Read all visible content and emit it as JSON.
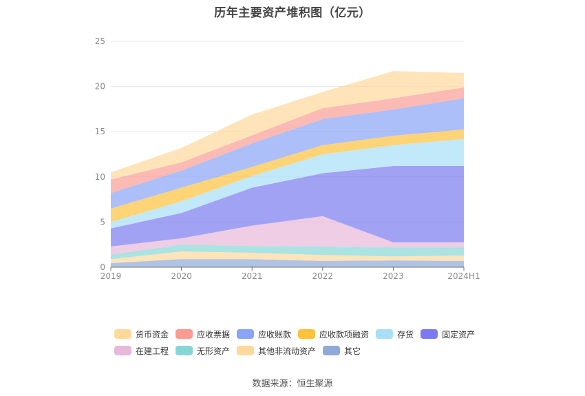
{
  "title": "历年主要资产堆积图（亿元）",
  "source": "数据来源：恒生聚源",
  "chart_data": {
    "type": "area",
    "stacked": true,
    "title": "历年主要资产堆积图（亿元）",
    "xlabel": "",
    "ylabel": "",
    "categories": [
      "2019",
      "2020",
      "2021",
      "2022",
      "2023",
      "2024H1"
    ],
    "ylim": [
      0,
      25
    ],
    "yticks": [
      0,
      5,
      10,
      15,
      20,
      25
    ],
    "grid": true,
    "legend_position": "bottom",
    "series": [
      {
        "name": "其它",
        "color": "#8faad9",
        "values": [
          0.45,
          0.9,
          0.9,
          0.7,
          0.75,
          0.7
        ]
      },
      {
        "name": "其他非流动资产",
        "color": "#ffd89c",
        "values": [
          0.45,
          0.85,
          0.7,
          0.65,
          0.45,
          0.6
        ]
      },
      {
        "name": "无形资产",
        "color": "#87d6d6",
        "values": [
          0.5,
          0.75,
          0.75,
          0.95,
          1.0,
          0.9
        ]
      },
      {
        "name": "在建工程",
        "color": "#e8b8d9",
        "values": [
          0.9,
          0.7,
          2.25,
          3.35,
          0.55,
          0.55
        ]
      },
      {
        "name": "固定资产",
        "color": "#7b7bef",
        "values": [
          2.0,
          2.8,
          4.2,
          4.75,
          8.45,
          8.45
        ]
      },
      {
        "name": "存货",
        "color": "#a8dff7",
        "values": [
          0.7,
          1.3,
          1.3,
          2.1,
          2.3,
          3.0
        ]
      },
      {
        "name": "应收款项融资",
        "color": "#ffc23d",
        "values": [
          1.5,
          1.5,
          1.0,
          1.0,
          1.05,
          1.05
        ]
      },
      {
        "name": "应收账款",
        "color": "#8aa4f7",
        "values": [
          1.7,
          1.9,
          2.6,
          2.9,
          2.9,
          3.45
        ]
      },
      {
        "name": "应收票据",
        "color": "#fa9c94",
        "values": [
          1.5,
          0.9,
          0.9,
          1.2,
          1.25,
          1.2
        ]
      },
      {
        "name": "货币资金",
        "color": "#ffd89c",
        "values": [
          0.8,
          1.6,
          2.3,
          1.8,
          3.0,
          1.6
        ]
      }
    ]
  },
  "legend": {
    "rows": [
      [
        {
          "name": "货币资金",
          "color": "#ffd89c"
        },
        {
          "name": "应收票据",
          "color": "#fa9c94"
        },
        {
          "name": "应收账款",
          "color": "#8aa4f7"
        },
        {
          "name": "应收款项融资",
          "color": "#ffc23d"
        },
        {
          "name": "存货",
          "color": "#a8dff7"
        },
        {
          "name": "固定资产",
          "color": "#7b7bef"
        }
      ],
      [
        {
          "name": "在建工程",
          "color": "#e8b8d9"
        },
        {
          "name": "无形资产",
          "color": "#87d6d6"
        },
        {
          "name": "其他非流动资产",
          "color": "#ffd89c"
        },
        {
          "name": "其它",
          "color": "#8faad9"
        }
      ]
    ]
  }
}
